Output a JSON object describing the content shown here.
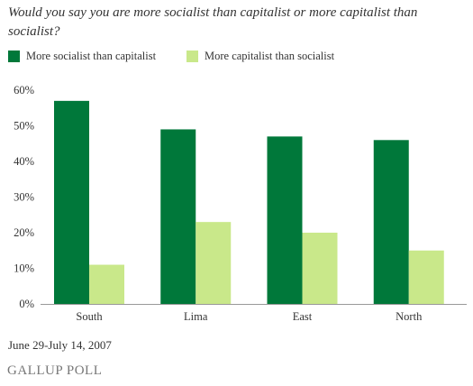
{
  "header": {
    "title": "Would you say you are more socialist than capitalist or more capitalist than socialist?"
  },
  "footer": {
    "date_note": "June 29-July 14, 2007",
    "source": "GALLUP POLL"
  },
  "chart_data": {
    "type": "bar",
    "categories": [
      "South",
      "Lima",
      "East",
      "North"
    ],
    "series": [
      {
        "name": "More socialist than capitalist",
        "values": [
          57,
          49,
          47,
          46
        ],
        "color": "#00783A"
      },
      {
        "name": "More capitalist than socialist",
        "values": [
          11,
          23,
          20,
          15
        ],
        "color": "#C9E88A"
      }
    ],
    "yticks": [
      "0%",
      "10%",
      "20%",
      "30%",
      "40%",
      "50%",
      "60%"
    ],
    "ylim": [
      0,
      60
    ],
    "grid": false,
    "legend_position": "top-left"
  }
}
